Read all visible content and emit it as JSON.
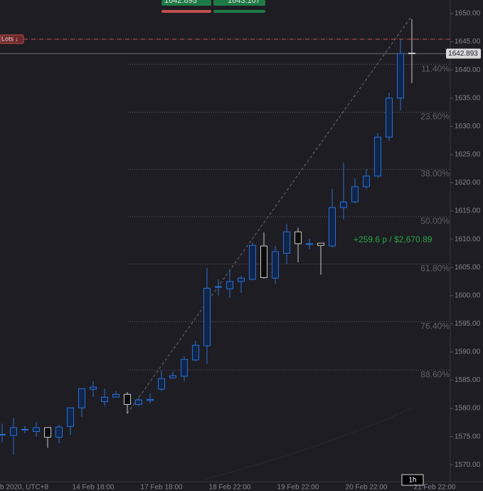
{
  "chart_data": {
    "type": "candlestick",
    "categories": [
      null,
      "b 2020, UTC+8",
      null,
      null,
      null,
      null,
      null,
      null,
      "14 Feb 18:00",
      null,
      null,
      null,
      null,
      null,
      "17 Feb 18:00",
      null,
      null,
      null,
      null,
      null,
      "18 Feb 22:00",
      null,
      null,
      null,
      null,
      null,
      "19 Feb 22:00",
      null,
      null,
      null,
      null,
      null,
      "20 Feb 22:00",
      null,
      null,
      null,
      null,
      null,
      "21 Feb 22:00"
    ],
    "open": [
      1575.4,
      1575.2,
      1576.2,
      1575.9,
      1576.6,
      1574.9,
      1576.8,
      1580.1,
      1583.4,
      1581.2,
      1582.0,
      1582.5,
      1580.7,
      1581.4,
      1583.4,
      1585.4,
      1585.7,
      1588.6,
      1591.1,
      1601.6,
      1601.2,
      1602.5,
      1602.9,
      1608.8,
      1603.1,
      1607.5,
      1611.3,
      1609.2,
      1609.3,
      1608.8,
      1615.6,
      1616.6,
      1619.3,
      1621.2,
      1628.1,
      1635.0,
      1643.0,
      null,
      null
    ],
    "high": [
      1577.3,
      1578.3,
      1576.9,
      1577.6,
      1576.6,
      1577.1,
      1580.1,
      1583.5,
      1584.8,
      1583.5,
      1583.1,
      1582.9,
      1581.9,
      1582.7,
      1586.7,
      1586.5,
      1589.2,
      1592.0,
      1604.9,
      1602.9,
      1604.6,
      1603.5,
      1609.4,
      1611.2,
      1608.8,
      1612.7,
      1612.0,
      1610.1,
      1609.3,
      1618.9,
      1623.6,
      1620.8,
      1622.4,
      1628.8,
      1636.0,
      1645.5,
      1649.0,
      null,
      null
    ],
    "low": [
      1574.0,
      1571.8,
      1575.6,
      1575.0,
      1573.0,
      1573.8,
      1575.3,
      1578.5,
      1582.1,
      1580.4,
      1582.0,
      1579.1,
      1580.4,
      1580.9,
      1583.1,
      1585.4,
      1584.8,
      1588.3,
      1587.9,
      1600.0,
      1599.6,
      1600.5,
      1602.7,
      1603.0,
      1602.1,
      1605.6,
      1605.9,
      1608.2,
      1603.7,
      1608.5,
      1613.5,
      1616.4,
      1618.9,
      1620.9,
      1627.4,
      1632.8,
      1637.7,
      null,
      null
    ],
    "close": [
      1575.4,
      1576.6,
      1576.3,
      1576.6,
      1574.9,
      1576.7,
      1580.1,
      1583.5,
      1583.8,
      1582.0,
      1582.5,
      1580.7,
      1581.5,
      1581.6,
      1585.3,
      1585.8,
      1588.7,
      1591.2,
      1601.3,
      1601.6,
      1602.5,
      1603.1,
      1608.9,
      1603.2,
      1607.8,
      1611.3,
      1609.2,
      1609.2,
      1608.9,
      1615.6,
      1616.6,
      1619.3,
      1621.2,
      1628.1,
      1635.0,
      1642.9,
      1642.893,
      null,
      null
    ],
    "up_color": "#2a6fd1",
    "down_color": "#c8c8c8",
    "ylim": [
      1567,
      1652.4
    ],
    "yticks": [
      {
        "value": 1570,
        "label": "1570.00"
      },
      {
        "value": 1575,
        "label": "1575.00"
      },
      {
        "value": 1580,
        "label": "1580.00"
      },
      {
        "value": 1585,
        "label": "1585.00"
      },
      {
        "value": 1590,
        "label": "1590.00"
      },
      {
        "value": 1595,
        "label": "1595.00"
      },
      {
        "value": 1600,
        "label": "1600.00"
      },
      {
        "value": 1605,
        "label": "1605.00"
      },
      {
        "value": 1610,
        "label": "1610.00"
      },
      {
        "value": 1615,
        "label": "1615.00"
      },
      {
        "value": 1620,
        "label": "1620.00"
      },
      {
        "value": 1625,
        "label": "1625.00"
      },
      {
        "value": 1630,
        "label": "1630.00"
      },
      {
        "value": 1635,
        "label": "1635.00"
      },
      {
        "value": 1640,
        "label": "1640.00"
      },
      {
        "value": 1645,
        "label": "1645.00"
      },
      {
        "value": 1650,
        "label": "1650.00"
      }
    ],
    "fib_levels": [
      {
        "label": "11.40%",
        "value": 1641.0
      },
      {
        "label": "23.60%",
        "value": 1632.5
      },
      {
        "label": "38.00%",
        "value": 1622.4
      },
      {
        "label": "50.00%",
        "value": 1614.0
      },
      {
        "label": "61.80%",
        "value": 1605.6
      },
      {
        "label": "76.40%",
        "value": 1595.4
      },
      {
        "label": "88.60%",
        "value": 1586.8
      }
    ],
    "current_price": 1642.893,
    "lots_line": {
      "label": "Lots ↓",
      "value": 1645.45
    },
    "trendline": {
      "from": {
        "x": 11,
        "y": 1579.1
      },
      "to": {
        "x": 36,
        "y": 1649.6
      }
    },
    "sell_price": 1642.893,
    "buy_price": 1643.107,
    "annotation": "+259.6 p /  $2,670.89",
    "interval": "1h"
  }
}
